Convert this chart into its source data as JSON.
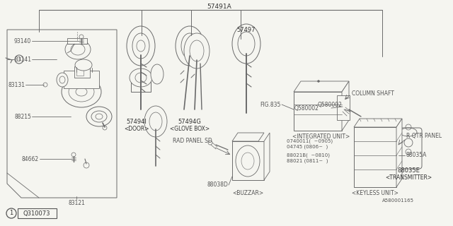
{
  "bg_color": "#f5f5f0",
  "lc": "#6a6a6a",
  "tc": "#555555",
  "figsize": [
    6.4,
    3.2
  ],
  "dpi": 100,
  "labels": {
    "main_part": "57491A",
    "l_93140": "93140",
    "l_83141": "83141",
    "l_83131": "83131",
    "l_88215": "88215",
    "l_84662": "84662",
    "l_83121": "83121",
    "part1_num": "57494I",
    "part1_sub": "<DOOR>",
    "part2_num": "57494G",
    "part2_sub": "<GLOVE BOX>",
    "part3_num": "57497",
    "part4_num": "88035E",
    "part4_sub": "<TRANSMITTER>",
    "part5_label": "FIG.835",
    "part5_sub": "<INTEGRATED UNIT>",
    "part6": "COLUMN SHAFT",
    "part7": "Q580002",
    "part8": "R QTR PANEL",
    "part9": "88035A",
    "part10": "<KEYLESS UNIT>",
    "part11": "A580001165",
    "part12": "RAD PANEL SD",
    "part13_num": "88038D",
    "part13_sub": "<BUZZAR>",
    "part14_1": "0740011(  ~0905)",
    "part14_2": "04745 (0806~  )",
    "part15_1": "88021B(  ~0810)",
    "part15_2": "88021 (0811~  )",
    "l_circle1": "1",
    "l_q310073": "Q310073"
  }
}
